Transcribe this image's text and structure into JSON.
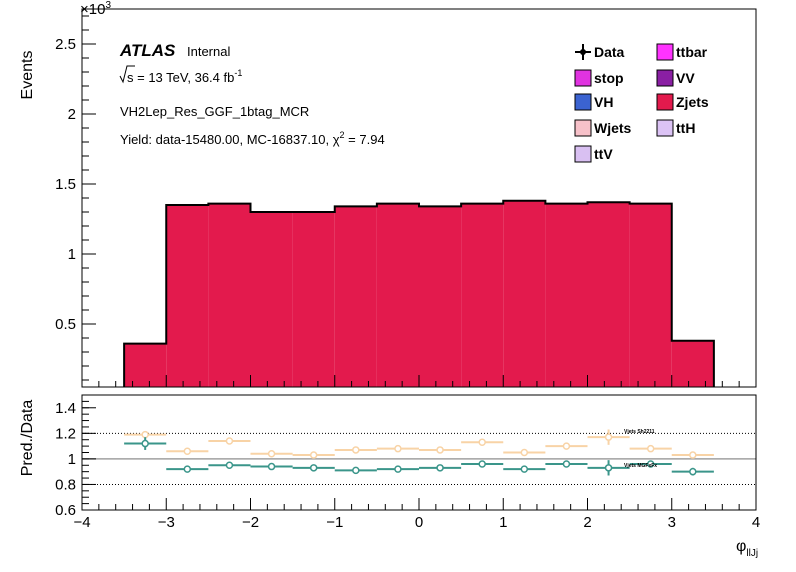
{
  "chart_data": [
    {
      "type": "bar",
      "panel": "main",
      "ylabel": "Events",
      "y_exponent": "×10",
      "y_exponent_power": "3",
      "ylim": [
        0.05,
        2.75
      ],
      "y_ticks": [
        "0.5",
        "1",
        "1.5",
        "2",
        "2.5"
      ],
      "bin_edges": [
        -3.5,
        -3.0,
        -2.5,
        -2.0,
        -1.5,
        -1.0,
        -0.5,
        0.0,
        0.5,
        1.0,
        1.5,
        2.0,
        2.5,
        3.0,
        3.5
      ],
      "stack": [
        {
          "name": "Zjets",
          "color": "#e31a4d",
          "values": [
            0.36,
            1.35,
            1.36,
            1.3,
            1.3,
            1.34,
            1.36,
            1.34,
            1.36,
            1.38,
            1.36,
            1.37,
            1.36,
            0.38
          ]
        }
      ],
      "atlas_label": "ATLAS",
      "atlas_status": "Internal",
      "energy_text_prefix": "s",
      "energy_text": " = 13 TeV, 36.4 fb",
      "energy_sup": "-1",
      "region": "VH2Lep_Res_GGF_1btag_MCR",
      "yield_text": "Yield: data-15480.00, MC-16837.10, χ",
      "yield_sup": "2",
      "yield_tail": " = 7.94",
      "legend": [
        {
          "label": "Data",
          "type": "marker",
          "color": "#000000"
        },
        {
          "label": "ttbar",
          "type": "box",
          "color": "#ff33ff"
        },
        {
          "label": "stop",
          "type": "box",
          "color": "#e033e0"
        },
        {
          "label": "VV",
          "type": "box",
          "color": "#8a1fa3"
        },
        {
          "label": "VH",
          "type": "box",
          "color": "#3b63d1"
        },
        {
          "label": "Zjets",
          "type": "box",
          "color": "#e31a4d"
        },
        {
          "label": "Wjets",
          "type": "box",
          "color": "#f7c1c9"
        },
        {
          "label": "ttH",
          "type": "box",
          "color": "#dcc3f5"
        },
        {
          "label": "ttV",
          "type": "box",
          "color": "#d9c0f2"
        }
      ]
    },
    {
      "type": "scatter",
      "panel": "ratio",
      "ylabel": "Pred./Data",
      "xlabel": "φ",
      "xlabel_sub": "llJj",
      "xlim": [
        -4,
        4
      ],
      "ylim": [
        0.6,
        1.5
      ],
      "x_ticks": [
        "−4",
        "−3",
        "−2",
        "−1",
        "0",
        "1",
        "2",
        "3",
        "4"
      ],
      "y_ticks": [
        "0.6",
        "0.8",
        "1",
        "1.2",
        "1.4"
      ],
      "reference_lines": [
        0.8,
        1.0,
        1.2
      ],
      "series": [
        {
          "name": "Vjets Sh2211",
          "color": "#f8d3a6",
          "x": [
            -3.25,
            -2.75,
            -2.25,
            -1.75,
            -1.25,
            -0.75,
            -0.25,
            0.25,
            0.75,
            1.25,
            1.75,
            2.25,
            2.75,
            3.25
          ],
          "y": [
            1.19,
            1.06,
            1.14,
            1.04,
            1.03,
            1.07,
            1.08,
            1.07,
            1.13,
            1.05,
            1.1,
            1.17,
            1.08,
            1.03
          ],
          "yerr": [
            0.02,
            0.01,
            0.01,
            0.01,
            0.01,
            0.01,
            0.01,
            0.01,
            0.01,
            0.01,
            0.01,
            0.06,
            0.01,
            0.01
          ]
        },
        {
          "name": "Vjets MGFxFx",
          "color": "#3a958a",
          "x": [
            -3.25,
            -2.75,
            -2.25,
            -1.75,
            -1.25,
            -0.75,
            -0.25,
            0.25,
            0.75,
            1.25,
            1.75,
            2.25,
            2.75,
            3.25
          ],
          "y": [
            1.12,
            0.92,
            0.95,
            0.94,
            0.93,
            0.91,
            0.92,
            0.93,
            0.96,
            0.92,
            0.96,
            0.93,
            0.96,
            0.9
          ],
          "yerr": [
            0.05,
            0.01,
            0.01,
            0.01,
            0.01,
            0.01,
            0.01,
            0.01,
            0.01,
            0.01,
            0.01,
            0.06,
            0.01,
            0.03
          ]
        }
      ]
    }
  ]
}
